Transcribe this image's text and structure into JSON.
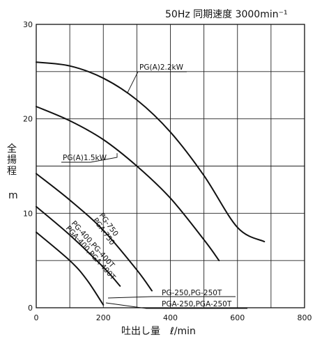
{
  "chart_data": {
    "type": "line",
    "title": "50Hz 同期速度 3000min⁻¹",
    "xlabel": "吐出し量　ℓ/min",
    "ylabel": "全揚程",
    "ylabel_unit": "m",
    "xlim": [
      0,
      800
    ],
    "ylim": [
      0,
      30
    ],
    "x_ticks": [
      "0",
      "200",
      "400",
      "600",
      "800"
    ],
    "y_ticks": [
      "0",
      "10",
      "20",
      "30"
    ],
    "grid": true,
    "series": [
      {
        "name": "PG(A)2.2kW",
        "points": [
          [
            0,
            26
          ],
          [
            100,
            25.6
          ],
          [
            200,
            24.3
          ],
          [
            300,
            22
          ],
          [
            400,
            18.6
          ],
          [
            500,
            14
          ],
          [
            600,
            8.5
          ],
          [
            680,
            7
          ]
        ]
      },
      {
        "name": "PG(A)1.5kW",
        "points": [
          [
            0,
            21.3
          ],
          [
            100,
            19.8
          ],
          [
            200,
            17.8
          ],
          [
            300,
            15
          ],
          [
            400,
            11.6
          ],
          [
            500,
            7.2
          ],
          [
            545,
            5
          ]
        ]
      },
      {
        "name": "PG-750",
        "points": [
          [
            0,
            14.2
          ],
          [
            100,
            11.4
          ],
          [
            200,
            8.2
          ],
          [
            300,
            4
          ],
          [
            345,
            1.8
          ]
        ]
      },
      {
        "name": "PGA-750",
        "points": []
      },
      {
        "name": "PG-400,PG-400T",
        "points": [
          [
            0,
            10.7
          ],
          [
            100,
            7.7
          ],
          [
            200,
            4.3
          ],
          [
            250,
            2.3
          ]
        ]
      },
      {
        "name": "PGA-400,PGA-400T",
        "points": []
      },
      {
        "name": "PG-250,PG-250T",
        "points": [
          [
            0,
            8
          ],
          [
            100,
            5
          ],
          [
            150,
            3
          ],
          [
            200,
            0.3
          ]
        ]
      },
      {
        "name": "PGA-250,PGA-250T",
        "points": []
      }
    ]
  },
  "labels": {
    "pga22": "PG(A)2.2kW",
    "pga15": "PG(A)1.5kW",
    "pg750": "PG-750",
    "pga750": "PGA-750",
    "pg400": "PG-400,PG-400T",
    "pga400": "PGA-400,PGA-400T",
    "pg250": "PG-250,PG-250T",
    "pga250": "PGA-250,PGA-250T"
  }
}
